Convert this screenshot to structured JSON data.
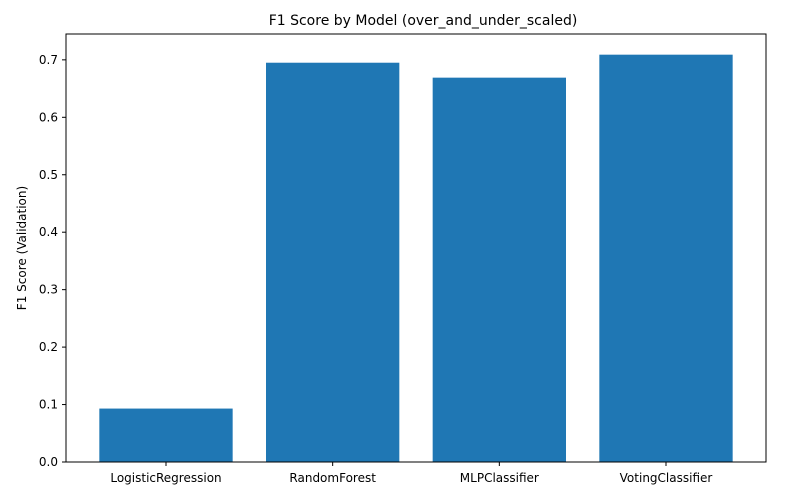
{
  "chart_data": {
    "type": "bar",
    "title": "F1 Score by Model (over_and_under_scaled)",
    "xlabel": "",
    "ylabel": "F1 Score (Validation)",
    "categories": [
      "LogisticRegression",
      "RandomForest",
      "MLPClassifier",
      "VotingClassifier"
    ],
    "values": [
      0.093,
      0.695,
      0.669,
      0.709
    ],
    "ylim": [
      0,
      0.745
    ],
    "yticks": [
      0.0,
      0.1,
      0.2,
      0.3,
      0.4,
      0.5,
      0.6,
      0.7
    ],
    "ytick_labels": [
      "0.0",
      "0.1",
      "0.2",
      "0.3",
      "0.4",
      "0.5",
      "0.6",
      "0.7"
    ],
    "grid": false,
    "colors": {
      "bar": "#1f77b4",
      "axis": "#000000"
    }
  }
}
